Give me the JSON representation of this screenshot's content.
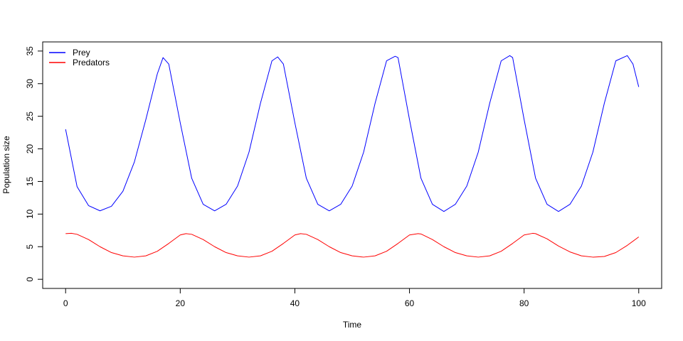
{
  "chart_data": {
    "type": "line",
    "title": "",
    "xlabel": "Time",
    "ylabel": "Population size",
    "xlim": [
      -4,
      104
    ],
    "ylim": [
      -1.4,
      36.4
    ],
    "x_ticks": [
      0,
      20,
      40,
      60,
      80,
      100
    ],
    "y_ticks": [
      0,
      5,
      10,
      15,
      20,
      25,
      30,
      35
    ],
    "grid": false,
    "legend_position": "top-left",
    "series": [
      {
        "name": "Prey",
        "color": "#0000ff",
        "x": [
          0,
          2,
          4,
          6,
          8,
          10,
          12,
          14,
          16,
          17,
          18,
          20,
          22,
          24,
          26,
          28,
          30,
          32,
          34,
          36,
          37,
          38,
          40,
          42,
          44,
          46,
          48,
          50,
          52,
          54,
          56,
          57.5,
          58,
          60,
          62,
          64,
          66,
          68,
          70,
          72,
          74,
          76,
          77.5,
          78,
          80,
          82,
          84,
          86,
          88,
          90,
          92,
          94,
          96,
          98,
          99,
          100
        ],
        "y": [
          23,
          14.2,
          11.3,
          10.5,
          11.2,
          13.5,
          18,
          24.5,
          31.5,
          34,
          33,
          24,
          15.5,
          11.5,
          10.5,
          11.5,
          14.3,
          19.5,
          27,
          33.5,
          34.1,
          33,
          24,
          15.5,
          11.5,
          10.5,
          11.5,
          14.3,
          19.5,
          27,
          33.5,
          34.2,
          34,
          24.5,
          15.5,
          11.5,
          10.4,
          11.5,
          14.3,
          19.5,
          27,
          33.5,
          34.3,
          34,
          24.5,
          15.5,
          11.5,
          10.4,
          11.5,
          14.3,
          19.5,
          27,
          33.5,
          34.3,
          33,
          29.5
        ]
      },
      {
        "name": "Predators",
        "color": "#ff0000",
        "x": [
          0,
          1,
          2,
          4,
          6,
          8,
          10,
          12,
          14,
          16,
          18,
          20,
          21,
          22,
          24,
          26,
          28,
          30,
          32,
          34,
          36,
          38,
          40,
          41,
          42,
          44,
          46,
          48,
          50,
          52,
          54,
          56,
          58,
          60,
          61.5,
          62,
          64,
          66,
          68,
          70,
          72,
          74,
          76,
          78,
          80,
          81.5,
          82,
          84,
          86,
          88,
          90,
          92,
          94,
          96,
          98,
          100
        ],
        "y": [
          7,
          7.05,
          6.9,
          6.1,
          5,
          4.1,
          3.6,
          3.4,
          3.6,
          4.3,
          5.5,
          6.8,
          7,
          6.9,
          6.1,
          5,
          4.1,
          3.6,
          3.4,
          3.6,
          4.3,
          5.5,
          6.8,
          7,
          6.9,
          6.1,
          5,
          4.1,
          3.6,
          3.4,
          3.6,
          4.3,
          5.5,
          6.8,
          7,
          6.95,
          6.1,
          5,
          4.1,
          3.6,
          3.4,
          3.6,
          4.3,
          5.5,
          6.8,
          7.05,
          7,
          6.2,
          5.1,
          4.2,
          3.6,
          3.4,
          3.5,
          4.1,
          5.2,
          6.5
        ]
      }
    ]
  }
}
